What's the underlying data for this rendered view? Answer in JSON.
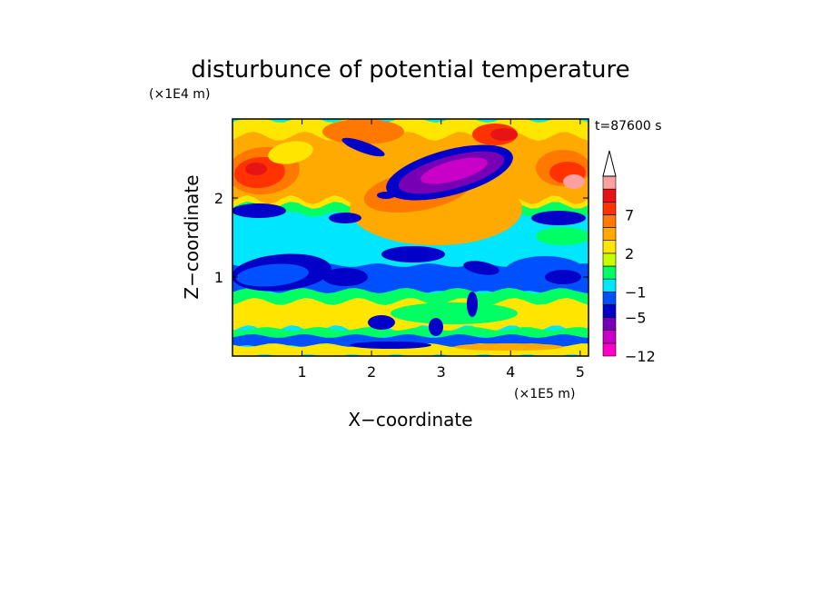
{
  "chart_data": {
    "type": "heatmap",
    "title": "disturbunce of potential temperature",
    "time_label": "t=87600 s",
    "xlabel": "X−coordinate",
    "ylabel": "Z−coordinate",
    "x_scale_label": "(×1E5 m)",
    "y_scale_label": "(×1E4 m)",
    "xlim": [
      0,
      5.12
    ],
    "ylim": [
      0,
      3.0
    ],
    "xticks": [
      {
        "value": 1,
        "label": "1"
      },
      {
        "value": 2,
        "label": "2"
      },
      {
        "value": 3,
        "label": "3"
      },
      {
        "value": 4,
        "label": "4"
      },
      {
        "value": 5,
        "label": "5"
      }
    ],
    "yticks": [
      {
        "value": 1,
        "label": "1"
      },
      {
        "value": 2,
        "label": "2"
      }
    ],
    "colorbar": {
      "levels": [
        -12,
        -9,
        -7,
        -5,
        -3,
        -1,
        0,
        1,
        2,
        3,
        5,
        7,
        9,
        11
      ],
      "colors": [
        "#ff00c8",
        "#c800c8",
        "#7800b4",
        "#0000c8",
        "#0050ff",
        "#00e6ff",
        "#00ff64",
        "#c8ff00",
        "#ffe600",
        "#ffaa00",
        "#ff7800",
        "#ff3200",
        "#e61414",
        "#ffa0a0"
      ],
      "tick_labels": [
        {
          "value": -12,
          "label": "−12"
        },
        {
          "value": -5,
          "label": "−5"
        },
        {
          "value": -1,
          "label": "−1"
        },
        {
          "value": 2,
          "label": "2"
        },
        {
          "value": 7,
          "label": "7"
        }
      ],
      "extend_top": true
    }
  }
}
